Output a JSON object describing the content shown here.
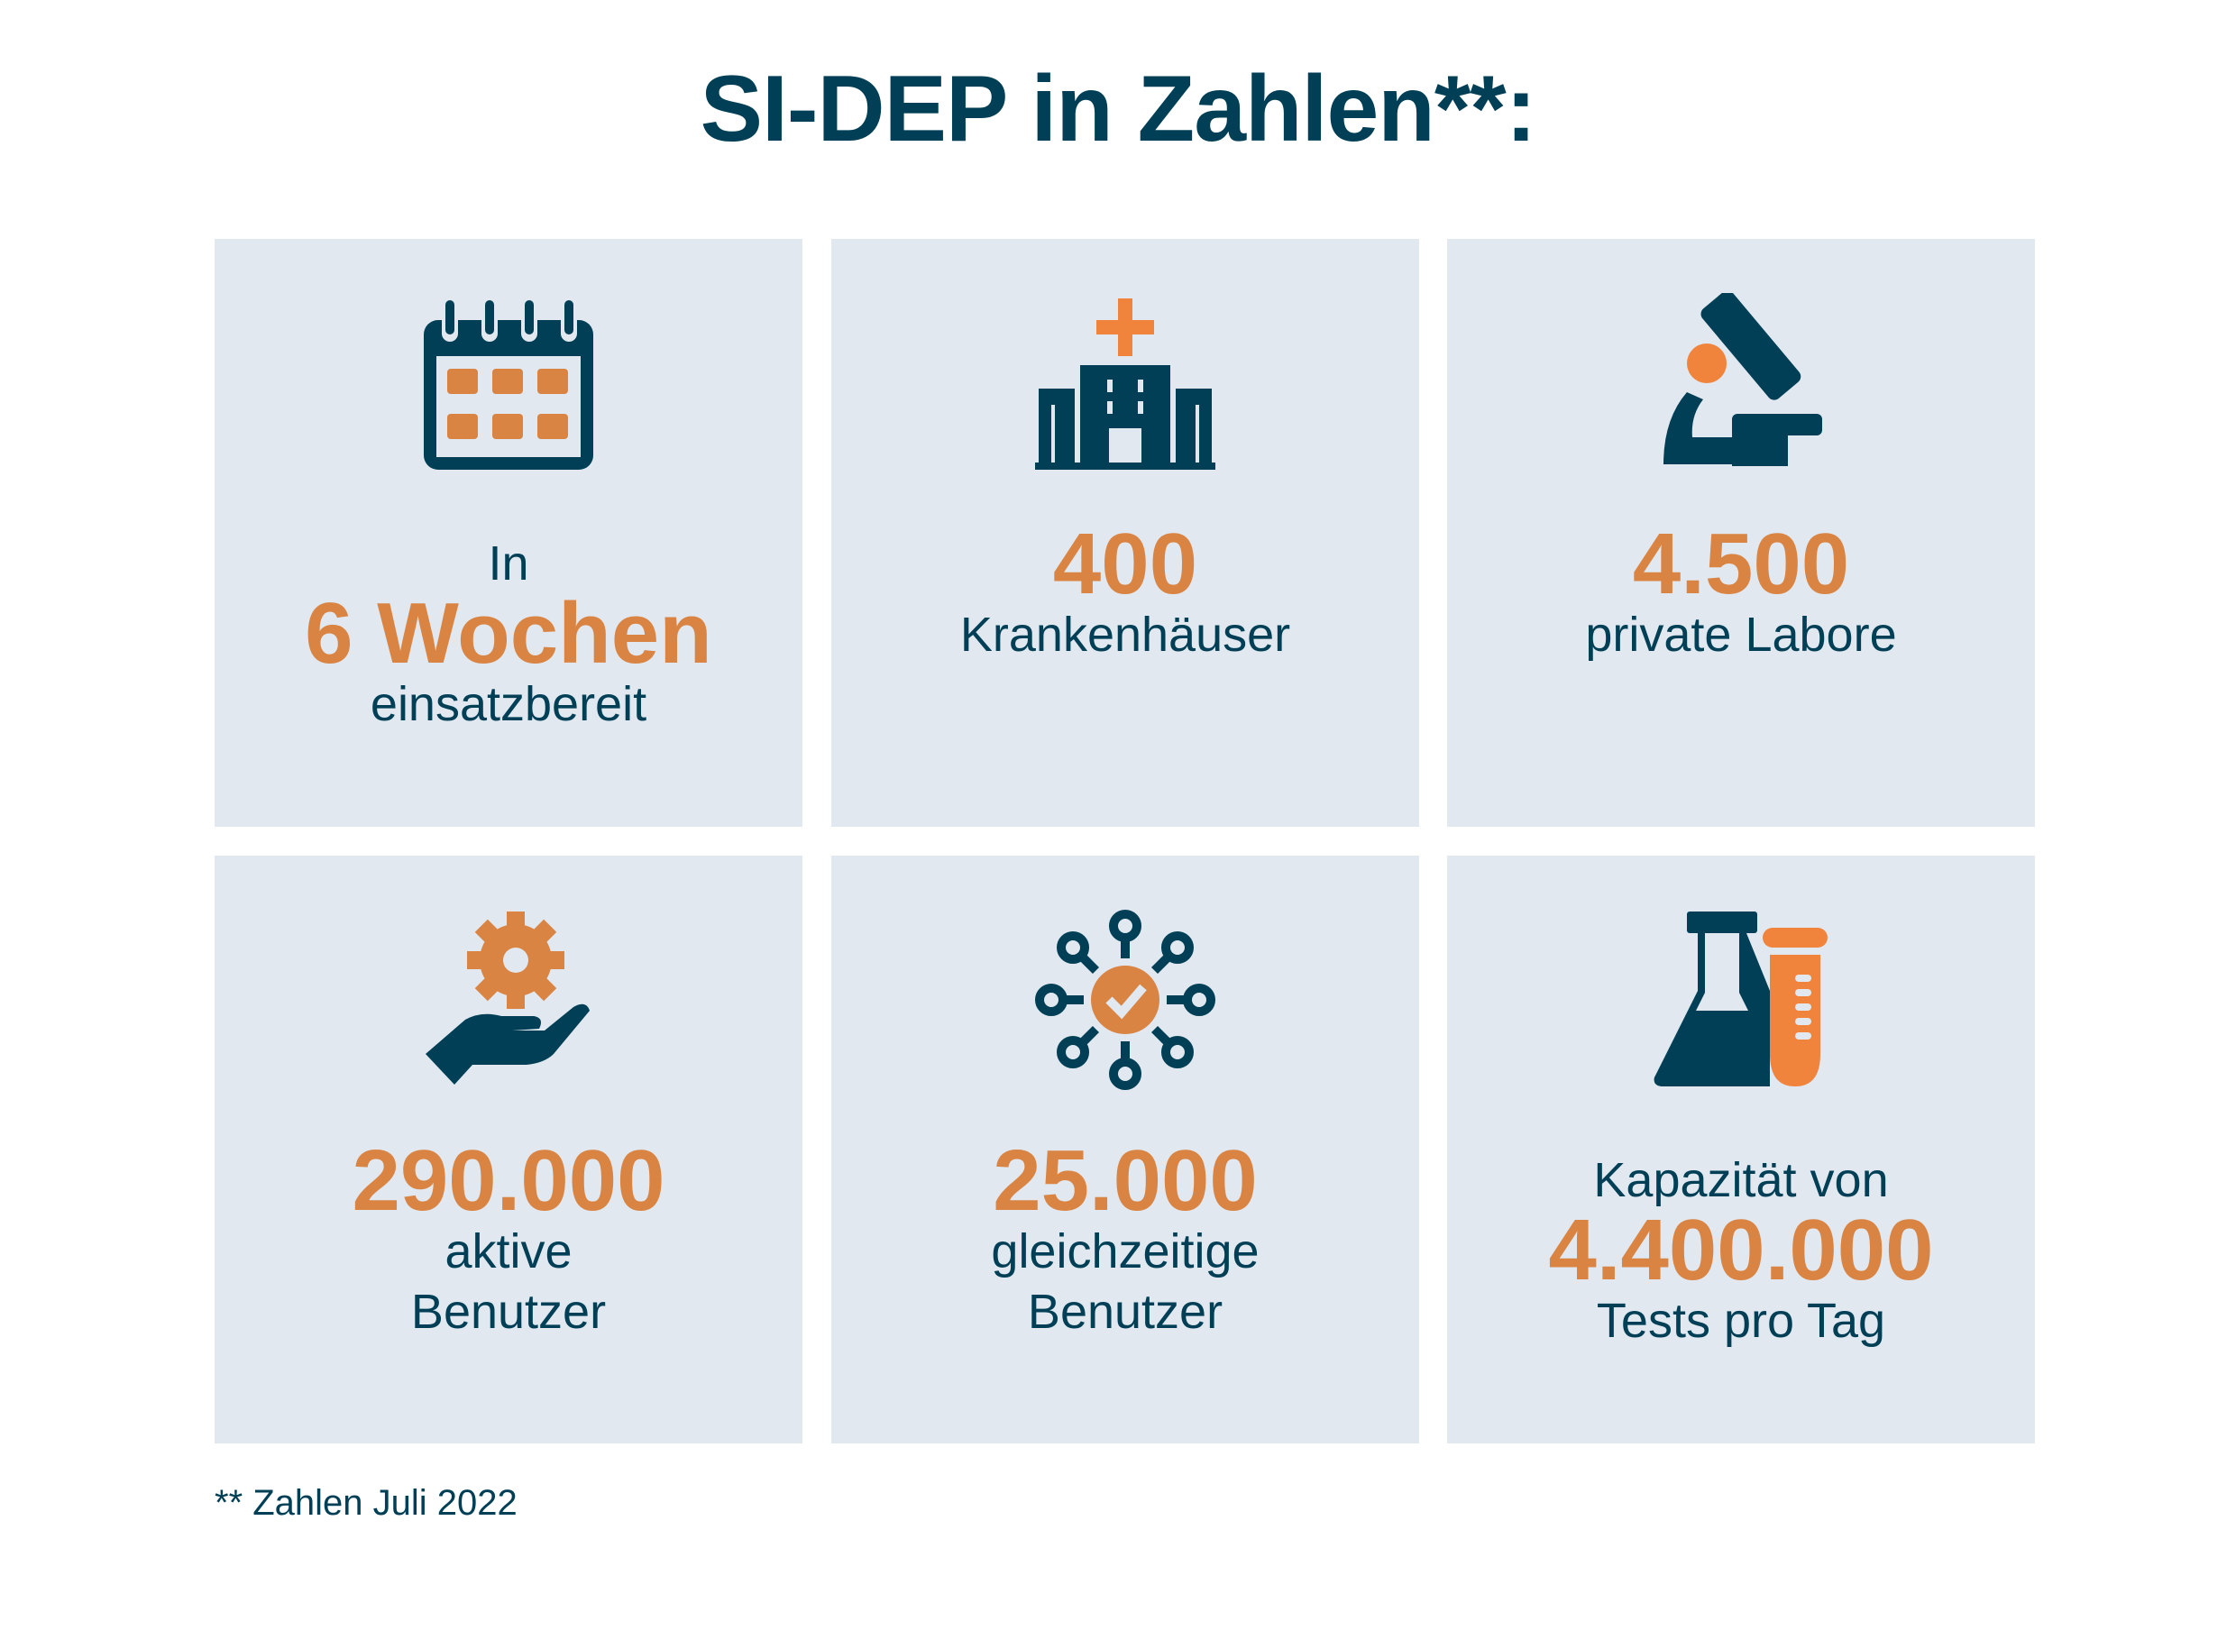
{
  "title": "SI-DEP in Zahlen**:",
  "colors": {
    "primary": "#003f56",
    "accent": "#d98443",
    "card": "#e1e8ef"
  },
  "cards": [
    {
      "icon": "calendar-icon",
      "pre": "In",
      "value": "6 Wochen",
      "post": "einsatzbereit"
    },
    {
      "icon": "hospital-icon",
      "value": "400",
      "post": "Krankenhäuser"
    },
    {
      "icon": "microscope-icon",
      "value": "4.500",
      "post": "private Labore"
    },
    {
      "icon": "gear-hand-icon",
      "value": "290.000",
      "post": "aktive",
      "post2": "Benutzer"
    },
    {
      "icon": "network-check-icon",
      "value": "25.000",
      "post": "gleichzeitige",
      "post2": "Benutzer"
    },
    {
      "icon": "lab-flask-icon",
      "pre": "Kapazität von",
      "value": "4.400.000",
      "post": "Tests pro Tag"
    }
  ],
  "footnote": "** Zahlen Juli 2022"
}
